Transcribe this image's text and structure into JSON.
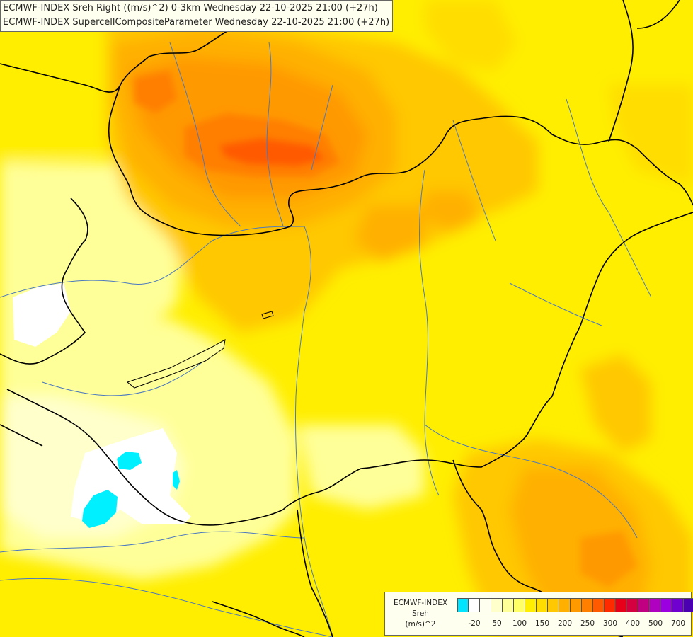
{
  "title_lines": [
    "ECMWF-INDEX Sreh Right ((m/s)^2) 0-3km Wednesday 22-10-2025 21:00 (+27h)",
    "ECMWF-INDEX SupercellCompositeParameter Wednesday 22-10-2025 21:00 (+27h)"
  ],
  "legend": {
    "title_lines": [
      "ECMWF-INDEX",
      "Sreh",
      "(m/s)^2"
    ],
    "colors": [
      "#00e5ff",
      "#ffffff",
      "#fffff0",
      "#ffffcc",
      "#ffff99",
      "#ffff66",
      "#ffee00",
      "#ffdd00",
      "#ffc800",
      "#ffb000",
      "#ff9900",
      "#ff7f00",
      "#ff5a00",
      "#ff2a00",
      "#e8001a",
      "#d40040",
      "#c00080",
      "#b000c0",
      "#9a00e0",
      "#7000d0",
      "#4a00b0",
      "#1c0080"
    ],
    "tick_labels": [
      "-20",
      "50",
      "100",
      "150",
      "200",
      "250",
      "300",
      "400",
      "500",
      "700"
    ]
  },
  "colors": {
    "background": "#ffff66",
    "border": "#000000",
    "river": "#4a78c0"
  }
}
